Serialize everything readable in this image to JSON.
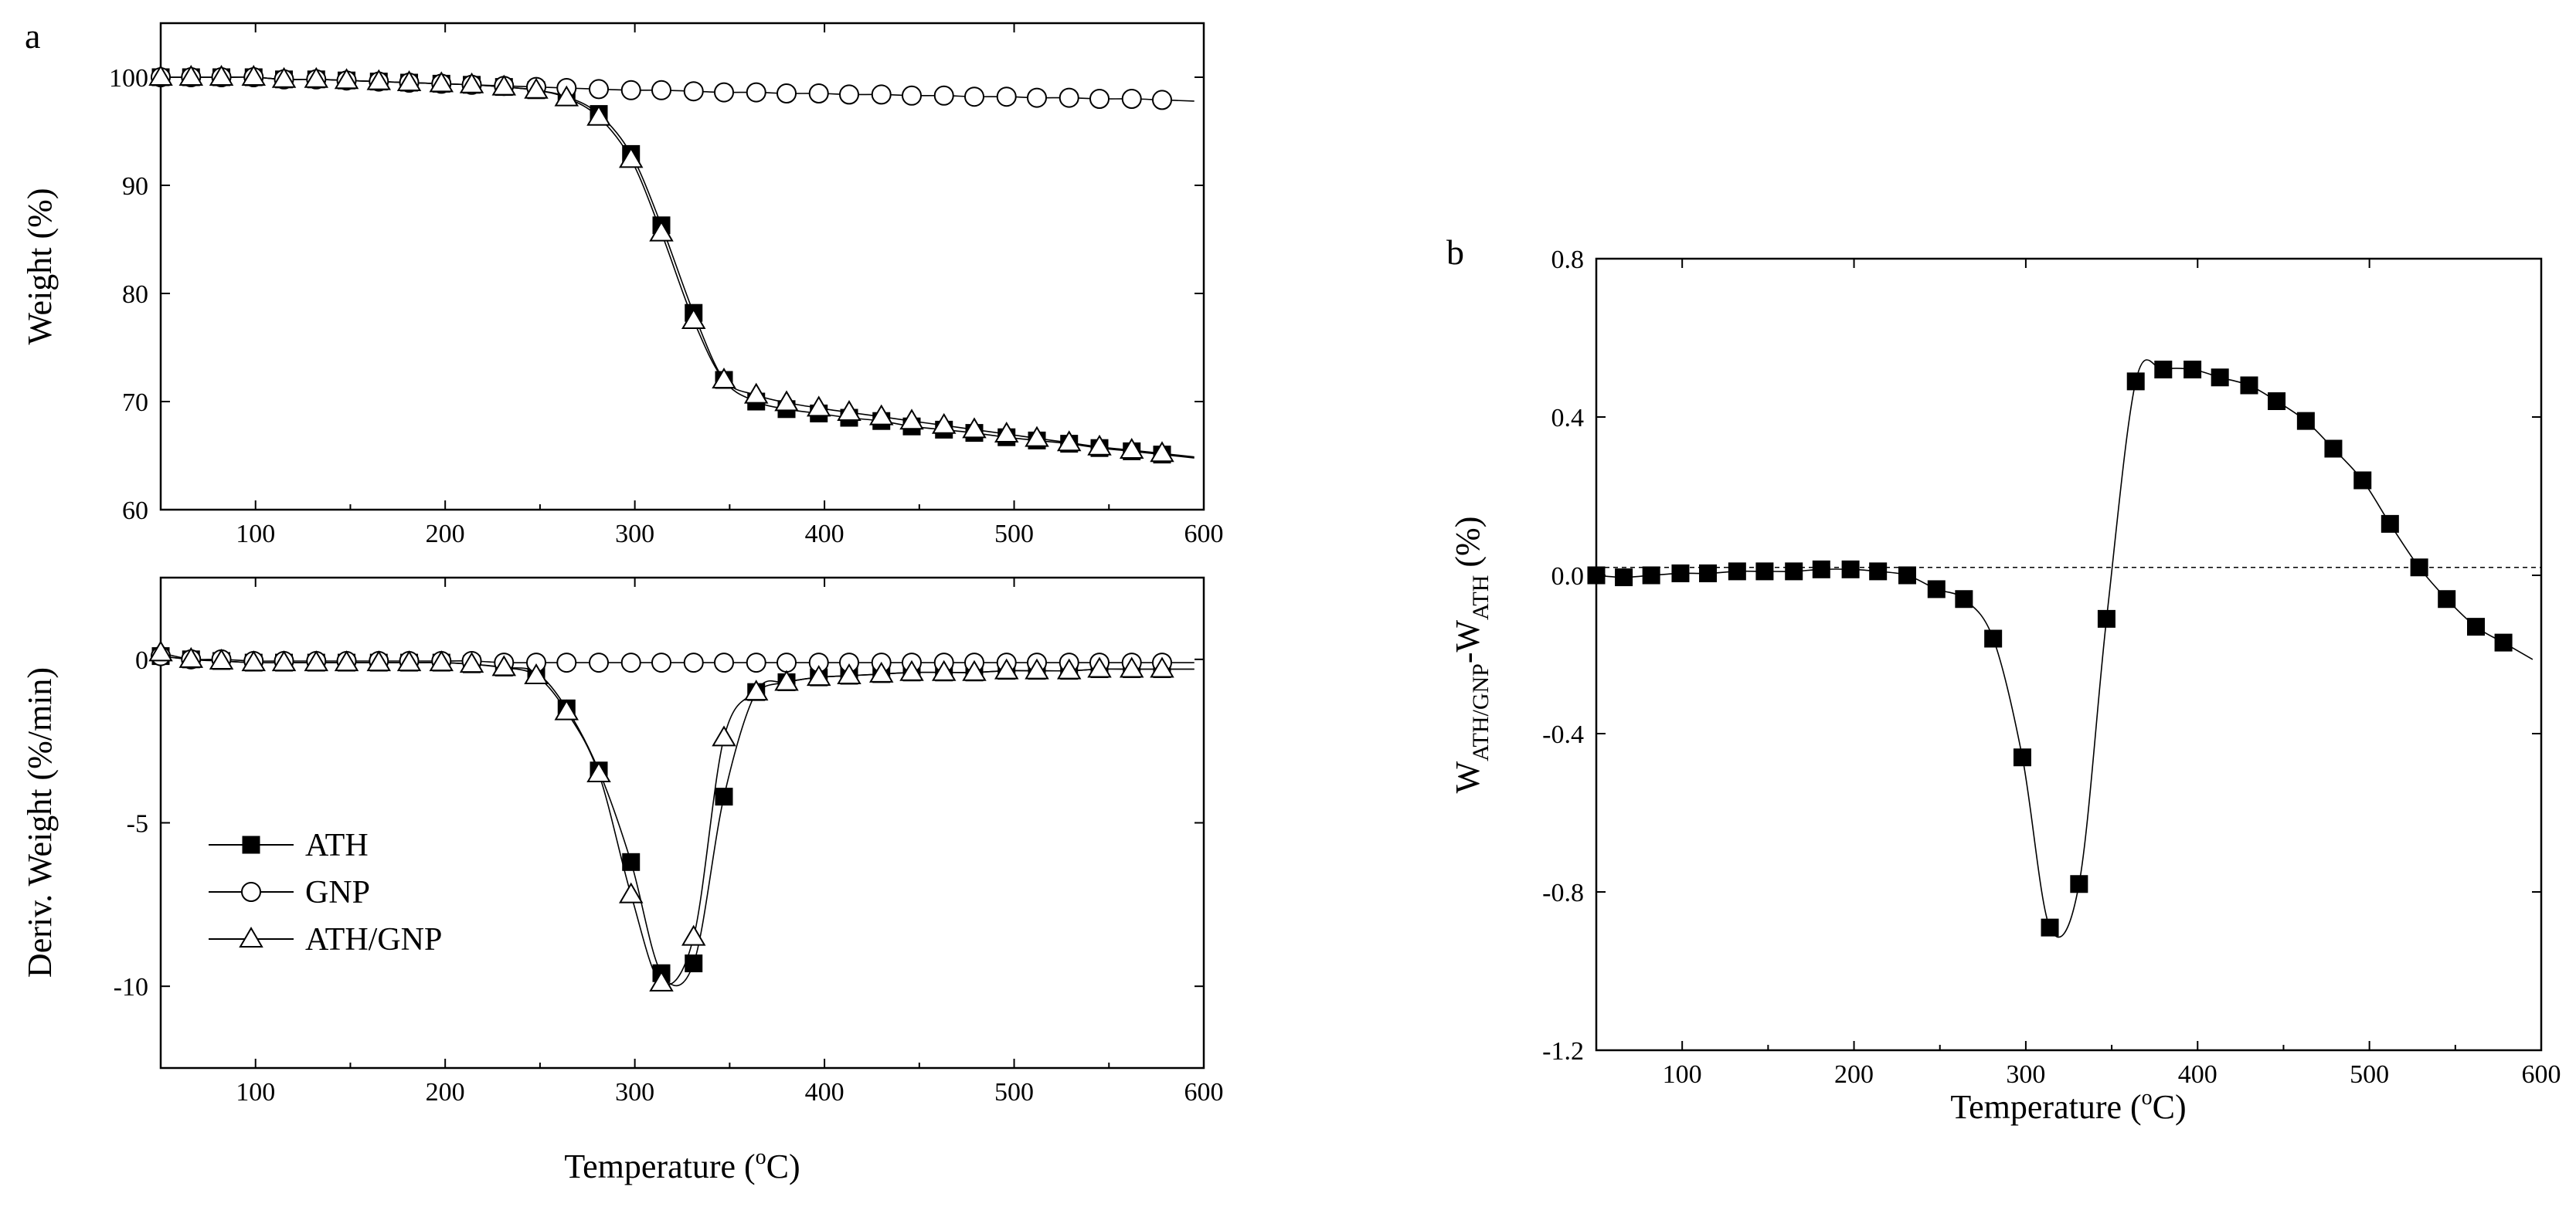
{
  "chart_data": [
    {
      "id": "a-top",
      "type": "line",
      "panel_label": "a",
      "title": "",
      "xlabel": "",
      "ylabel": "Weight (%)",
      "xlim": [
        50,
        600
      ],
      "ylim": [
        60,
        105
      ],
      "xticks": [
        100,
        200,
        300,
        400,
        500,
        600
      ],
      "yticks": [
        60,
        70,
        80,
        90,
        100
      ],
      "marker_x": [
        50,
        66,
        82,
        99,
        115,
        132,
        148,
        165,
        181,
        198,
        214,
        231,
        248,
        264,
        281,
        298,
        314,
        331,
        347,
        364,
        380,
        397,
        413,
        430,
        446,
        463,
        479,
        496,
        512,
        529,
        545,
        562,
        578
      ],
      "series": [
        {
          "name": "ATH",
          "marker": "filled-square",
          "values": [
            100,
            100,
            100,
            100,
            99.8,
            99.8,
            99.7,
            99.6,
            99.5,
            99.4,
            99.3,
            99.1,
            98.8,
            98.2,
            96.6,
            92.9,
            86.3,
            78.2,
            72.0,
            70.0,
            69.3,
            68.9,
            68.5,
            68.2,
            67.7,
            67.4,
            67.1,
            66.7,
            66.4,
            66.1,
            65.7,
            65.4,
            65.1
          ]
        },
        {
          "name": "GNP",
          "marker": "open-circle",
          "values": [
            100,
            100,
            100,
            100,
            99.8,
            99.8,
            99.7,
            99.6,
            99.5,
            99.4,
            99.3,
            99.2,
            99.1,
            99.0,
            98.9,
            98.8,
            98.8,
            98.7,
            98.6,
            98.6,
            98.5,
            98.5,
            98.4,
            98.4,
            98.3,
            98.3,
            98.2,
            98.2,
            98.1,
            98.1,
            98.0,
            98.0,
            97.9
          ]
        },
        {
          "name": "ATH/GNP",
          "marker": "open-triangle",
          "values": [
            100,
            100,
            100,
            100,
            99.8,
            99.8,
            99.7,
            99.6,
            99.5,
            99.4,
            99.3,
            99.1,
            98.8,
            98.1,
            96.3,
            92.4,
            85.6,
            77.5,
            72.0,
            70.6,
            69.9,
            69.4,
            69.0,
            68.6,
            68.2,
            67.8,
            67.4,
            67.0,
            66.6,
            66.2,
            65.8,
            65.5,
            65.2
          ]
        }
      ]
    },
    {
      "id": "a-bottom",
      "type": "line",
      "title": "",
      "xlabel": "Temperature (°C)",
      "ylabel": "Deriv. Weight (%/min)",
      "xlim": [
        50,
        600
      ],
      "ylim": [
        -12.5,
        2.5
      ],
      "xticks": [
        100,
        200,
        300,
        400,
        500,
        600
      ],
      "yticks": [
        -10,
        -5,
        0
      ],
      "legend_position": "lower-left",
      "marker_x": [
        50,
        66,
        82,
        99,
        115,
        132,
        148,
        165,
        181,
        198,
        214,
        231,
        248,
        264,
        281,
        298,
        314,
        331,
        347,
        364,
        380,
        397,
        413,
        430,
        446,
        463,
        479,
        496,
        512,
        529,
        545,
        562,
        578
      ],
      "series": [
        {
          "name": "ATH",
          "marker": "filled-square",
          "values": [
            0.1,
            0.0,
            -0.05,
            -0.1,
            -0.1,
            -0.1,
            -0.1,
            -0.1,
            -0.1,
            -0.1,
            -0.15,
            -0.25,
            -0.4,
            -1.5,
            -3.4,
            -6.2,
            -9.6,
            -9.3,
            -4.2,
            -1.0,
            -0.7,
            -0.55,
            -0.5,
            -0.45,
            -0.4,
            -0.4,
            -0.4,
            -0.35,
            -0.35,
            -0.35,
            -0.3,
            -0.3,
            -0.3
          ]
        },
        {
          "name": "GNP",
          "marker": "open-circle",
          "values": [
            0.1,
            0.0,
            0.0,
            -0.05,
            -0.05,
            -0.05,
            -0.05,
            -0.05,
            -0.05,
            -0.05,
            -0.05,
            -0.1,
            -0.1,
            -0.1,
            -0.1,
            -0.1,
            -0.1,
            -0.1,
            -0.1,
            -0.1,
            -0.1,
            -0.1,
            -0.1,
            -0.1,
            -0.1,
            -0.1,
            -0.1,
            -0.1,
            -0.1,
            -0.1,
            -0.1,
            -0.1,
            -0.1
          ]
        },
        {
          "name": "ATH/GNP",
          "marker": "open-triangle",
          "values": [
            0.2,
            0.0,
            -0.05,
            -0.1,
            -0.1,
            -0.1,
            -0.1,
            -0.1,
            -0.1,
            -0.1,
            -0.15,
            -0.25,
            -0.5,
            -1.6,
            -3.5,
            -7.2,
            -9.9,
            -8.5,
            -2.4,
            -1.0,
            -0.7,
            -0.55,
            -0.5,
            -0.45,
            -0.4,
            -0.4,
            -0.4,
            -0.35,
            -0.35,
            -0.35,
            -0.3,
            -0.3,
            -0.3
          ]
        }
      ]
    },
    {
      "id": "b",
      "type": "line",
      "panel_label": "b",
      "title": "",
      "xlabel": "Temperature (°C)",
      "ylabel": "W(ATH/GNP) - W(ATH) (%)",
      "ylabel_main": "W",
      "ylabel_sub1": "ATH/GNP",
      "ylabel_mid": "-W",
      "ylabel_sub2": "ATH",
      "ylabel_unit": "(%)",
      "xlim": [
        50,
        600
      ],
      "ylim": [
        -1.2,
        0.8
      ],
      "xticks": [
        100,
        200,
        300,
        400,
        500,
        600
      ],
      "yticks": [
        -1.2,
        -0.8,
        -0.4,
        0.0,
        0.4,
        0.8
      ],
      "reference_line_y": 0.02,
      "marker_x": [
        50,
        66,
        82,
        99,
        115,
        132,
        148,
        165,
        181,
        198,
        214,
        231,
        248,
        264,
        281,
        298,
        314,
        331,
        347,
        364,
        380,
        397,
        413,
        430,
        446,
        463,
        479,
        496,
        512,
        529,
        545,
        562,
        578
      ],
      "series": [
        {
          "name": "W(ATH/GNP) - W(ATH)",
          "marker": "filled-square",
          "values": [
            0.0,
            -0.005,
            0.0,
            0.005,
            0.005,
            0.01,
            0.01,
            0.01,
            0.015,
            0.015,
            0.01,
            0.0,
            -0.035,
            -0.06,
            -0.16,
            -0.46,
            -0.89,
            -0.78,
            -0.11,
            0.49,
            0.52,
            0.52,
            0.5,
            0.48,
            0.44,
            0.39,
            0.32,
            0.24,
            0.13,
            0.02,
            -0.06,
            -0.13,
            -0.17
          ]
        }
      ]
    }
  ],
  "labels": {
    "panel_a": "a",
    "panel_b": "b",
    "temp_label_prefix": "Temperature (",
    "temp_label_degree": "o",
    "temp_label_suffix": "C)",
    "legend": [
      "ATH",
      "GNP",
      "ATH/GNP"
    ]
  }
}
